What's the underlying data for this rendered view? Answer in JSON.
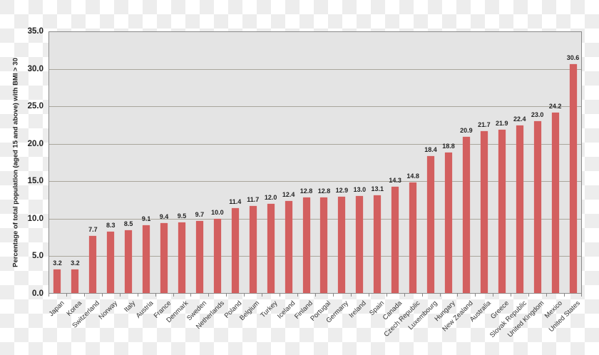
{
  "chart_data": {
    "type": "bar",
    "title": "",
    "xlabel": "",
    "ylabel": "Percentage of total population (aged 15 and above) with BMI > 30",
    "ylim": [
      0,
      35
    ],
    "yticks": [
      "0.0",
      "5.0",
      "10.0",
      "15.0",
      "20.0",
      "25.0",
      "30.0",
      "35.0"
    ],
    "grid": true,
    "legend": null,
    "bar_color": "#d35f5f",
    "plot_background": "#e4e4e4",
    "categories": [
      "Japan",
      "Korea",
      "Switzerland",
      "Norway",
      "Italy",
      "Austria",
      "France",
      "Denmark",
      "Sweden",
      "Netherlands",
      "Poland",
      "Belgium",
      "Turkey",
      "Iceland",
      "Finland",
      "Portugal",
      "Germany",
      "Ireland",
      "Spain",
      "Canada",
      "Czech Republic",
      "Luxembourg",
      "Hungary",
      "New Zealand",
      "Australia",
      "Greece",
      "Slovak Republic",
      "United Kingdom",
      "Mexico",
      "United States"
    ],
    "values": [
      3.2,
      3.2,
      7.7,
      8.3,
      8.5,
      9.1,
      9.4,
      9.5,
      9.7,
      10.0,
      11.4,
      11.7,
      12.0,
      12.4,
      12.8,
      12.8,
      12.9,
      13.0,
      13.1,
      14.3,
      14.8,
      18.4,
      18.8,
      20.9,
      21.7,
      21.9,
      22.4,
      23.0,
      24.2,
      30.6
    ],
    "value_labels": [
      "3.2",
      "3.2",
      "7.7",
      "8.3",
      "8.5",
      "9.1",
      "9.4",
      "9.5",
      "9.7",
      "10.0",
      "11.4",
      "11.7",
      "12.0",
      "12.4",
      "12.8",
      "12.8",
      "12.9",
      "13.0",
      "13.1",
      "14.3",
      "14.8",
      "18.4",
      "18.8",
      "20.9",
      "21.7",
      "21.9",
      "22.4",
      "23.0",
      "24.2",
      "30.6"
    ]
  }
}
